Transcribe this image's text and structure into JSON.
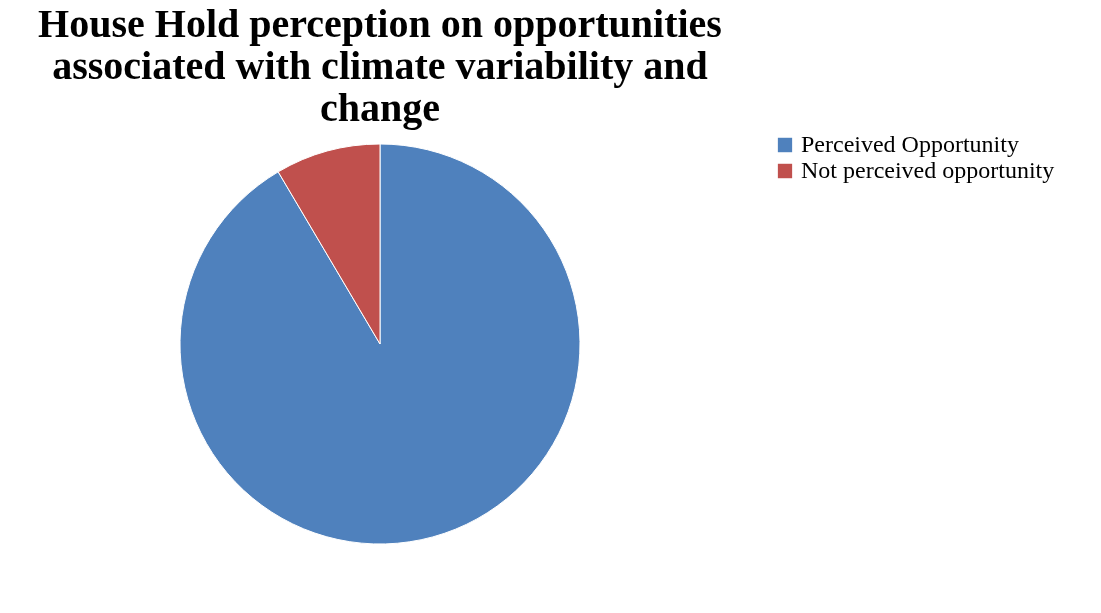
{
  "chart_data": {
    "type": "pie",
    "title": "House Hold perception on opportunities associated with climate variability and change",
    "categories": [
      "Perceived  Opportunity",
      "Not perceived opportunity"
    ],
    "values": [
      91.5,
      8.5
    ],
    "colors": [
      "#4f81bd",
      "#c0504d"
    ],
    "legend": "right"
  }
}
